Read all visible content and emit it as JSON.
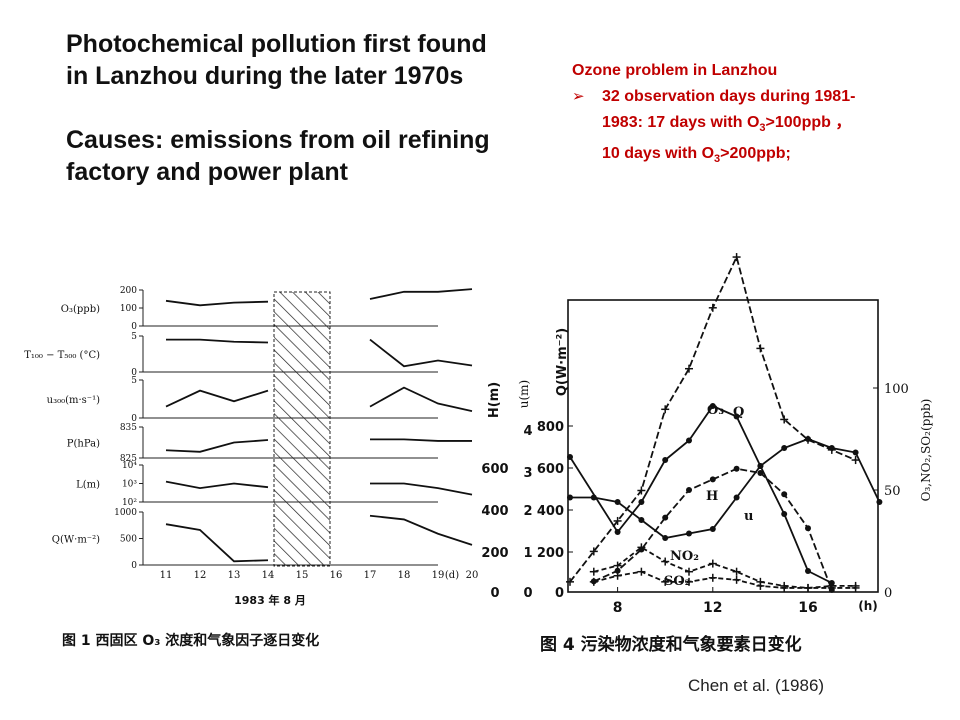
{
  "header": {
    "title_line1": "Photochemical pollution first found",
    "title_line2": "in Lanzhou during the later 1970s",
    "causes_line1": "Causes: emissions from oil refining",
    "causes_line2": "factory and power plant"
  },
  "ozone_box": {
    "heading": "Ozone problem in Lanzhou",
    "bullet_a": "32 observation days during 1981-",
    "bullet_b1": "1983: 17  days with O",
    "bullet_b2": ">100ppb ，",
    "bullet_c1": "10 days with O",
    "bullet_c2": ">200ppb;",
    "sub3": "3"
  },
  "credit": "Chen et al. (1986)",
  "chart_data": [
    {
      "type": "line",
      "caption": "图 1   西固区  O₃ 浓度和气象因子逐日变化",
      "xlabel": "1983 年 8 月",
      "x_unit": "(d)",
      "x_ticks": [
        "11",
        "12",
        "13",
        "14",
        "15",
        "16",
        "17",
        "18",
        "19",
        "20"
      ],
      "panels": [
        {
          "label": "O₃(ppb)",
          "ticks": [
            "200",
            "100",
            "0"
          ],
          "ylim": [
            0,
            200
          ],
          "x": [
            11,
            12,
            13,
            14,
            17,
            18,
            19,
            20
          ],
          "values": [
            140,
            115,
            130,
            135,
            150,
            190,
            190,
            205
          ]
        },
        {
          "label": "T₁₀₀ − T₅₀₀ (°C)",
          "ticks": [
            "5",
            "0"
          ],
          "ylim": [
            0,
            5
          ],
          "x": [
            11,
            12,
            13,
            14,
            17,
            18,
            19,
            20
          ],
          "values": [
            4.5,
            4.5,
            4.2,
            4.1,
            4.5,
            0.8,
            1.6,
            0.9
          ]
        },
        {
          "label": "u₃₀₀(m·s⁻¹)",
          "ticks": [
            "5",
            "0"
          ],
          "ylim": [
            0,
            5
          ],
          "x": [
            11,
            12,
            13,
            14,
            17,
            18,
            19,
            20
          ],
          "values": [
            1.5,
            3.6,
            2.2,
            3.6,
            1.5,
            4.0,
            1.9,
            0.9
          ]
        },
        {
          "label": "P(hPa)",
          "ticks": [
            "835",
            "825"
          ],
          "ylim": [
            825,
            835
          ],
          "x": [
            11,
            12,
            13,
            14,
            17,
            18,
            19,
            20
          ],
          "values": [
            827.5,
            827,
            830,
            830.8,
            831,
            831,
            830.5,
            830.5
          ]
        },
        {
          "label": "L(m)",
          "ticks": [
            "10⁴",
            "10³",
            "10²"
          ],
          "ylim": [
            2,
            4
          ],
          "x": [
            11,
            12,
            13,
            14,
            17,
            18,
            19,
            20
          ],
          "values": [
            3.1,
            2.75,
            3.0,
            2.8,
            3.0,
            3.0,
            2.75,
            2.4
          ]
        },
        {
          "label": "Q(W·m⁻²)",
          "ticks": [
            "1000",
            "500",
            "0"
          ],
          "ylim": [
            0,
            1000
          ],
          "x": [
            11,
            12,
            13,
            14,
            17,
            18,
            19,
            20
          ],
          "values": [
            770,
            660,
            70,
            90,
            930,
            860,
            590,
            380
          ]
        }
      ]
    },
    {
      "type": "line",
      "caption": "图 4   污染物浓度和气象要素日变化",
      "x_unit": "(h)",
      "x_ticks": [
        "8",
        "12",
        "16"
      ],
      "left_axes": [
        {
          "label": "H(m)",
          "ticks": [
            "600",
            "400",
            "200",
            "0"
          ]
        },
        {
          "label": "u(m)",
          "ticks": [
            "4",
            "3",
            "2",
            "1",
            "0"
          ]
        },
        {
          "label": "Q(W·m⁻²)",
          "ticks": [
            "800",
            "600",
            "400",
            "200",
            "0"
          ]
        }
      ],
      "right_axis": {
        "label": "O₃,NO₂,SO₂(ppb)",
        "ticks": [
          "100",
          "50",
          "0"
        ]
      },
      "series": [
        {
          "name": "O₃",
          "axis": "ppb",
          "x": [
            6,
            7,
            8,
            9,
            10,
            11,
            12,
            13,
            14,
            15,
            16,
            17,
            18
          ],
          "values": [
            5,
            20,
            35,
            50,
            90,
            110,
            140,
            165,
            120,
            85,
            75,
            70,
            65
          ]
        },
        {
          "name": "Q",
          "axis": "Q",
          "x": [
            7,
            8,
            9,
            10,
            11,
            12,
            13,
            14,
            15,
            16,
            17
          ],
          "values": [
            50,
            100,
            200,
            350,
            480,
            530,
            580,
            560,
            460,
            300,
            10
          ]
        },
        {
          "name": "H",
          "axis": "H",
          "x": [
            6,
            8,
            9,
            10,
            11,
            12,
            13,
            14,
            15,
            16,
            17
          ],
          "values": [
            450,
            200,
            300,
            440,
            505,
            620,
            585,
            420,
            260,
            70,
            30
          ]
        },
        {
          "name": "u",
          "axis": "u",
          "x": [
            6,
            7,
            8,
            9,
            10,
            11,
            12,
            13,
            14,
            15,
            16,
            17,
            18,
            19
          ],
          "values": [
            2.1,
            2.1,
            2.0,
            1.6,
            1.2,
            1.3,
            1.4,
            2.1,
            2.8,
            3.2,
            3.4,
            3.2,
            3.1,
            2.0
          ]
        },
        {
          "name": "NO₂",
          "axis": "ppb",
          "x": [
            7,
            8,
            9,
            10,
            11,
            12,
            13,
            14,
            15,
            16,
            17,
            18
          ],
          "values": [
            10,
            13,
            22,
            15,
            10,
            14,
            10,
            5,
            3,
            2,
            3,
            3
          ]
        },
        {
          "name": "SO₂",
          "axis": "ppb",
          "x": [
            7,
            8,
            9,
            10,
            11,
            12,
            13,
            14,
            15,
            16,
            17,
            18
          ],
          "values": [
            5,
            8,
            10,
            5,
            5,
            7,
            6,
            3,
            2,
            2,
            2,
            2
          ]
        }
      ]
    }
  ]
}
